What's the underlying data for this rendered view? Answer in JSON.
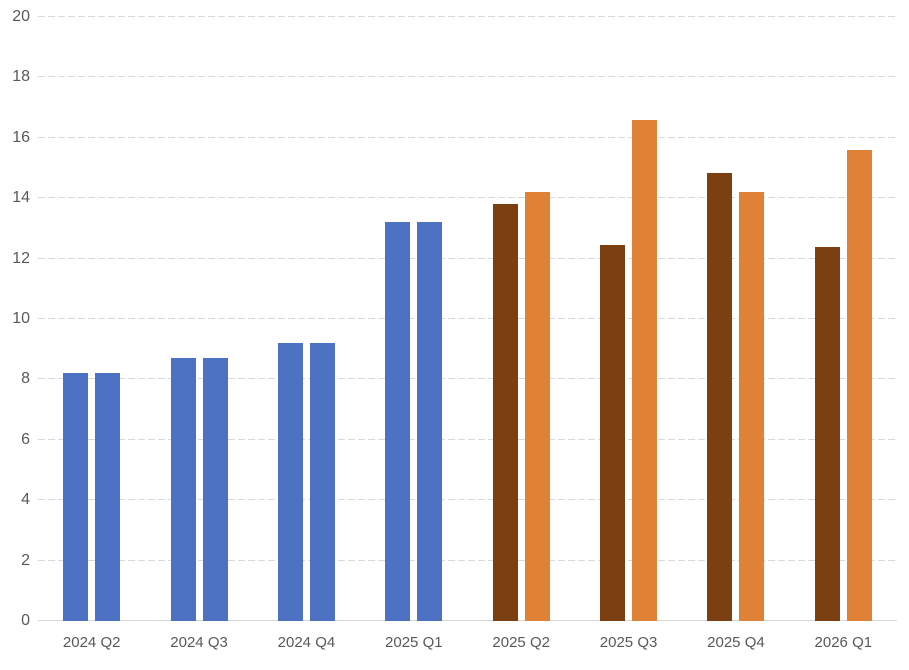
{
  "chart_data": {
    "type": "bar",
    "title": "",
    "xlabel": "",
    "ylabel": "",
    "legend": "none",
    "grid": "dashed-horizontal",
    "ylim": [
      0,
      20
    ],
    "ytick_step": 2,
    "yticks": [
      0,
      2,
      4,
      6,
      8,
      10,
      12,
      14,
      16,
      18,
      20
    ],
    "categories": [
      "2024 Q2",
      "2024 Q3",
      "2024 Q4",
      "2025 Q1",
      "2025 Q2",
      "2025 Q3",
      "2025 Q4",
      "2026 Q1"
    ],
    "series": [
      {
        "name": "left-bar-series",
        "values": [
          8.2,
          8.7,
          9.2,
          13.2,
          13.8,
          12.45,
          14.85,
          12.4
        ],
        "colors": [
          "#4D72C3",
          "#4D72C3",
          "#4D72C3",
          "#4D72C3",
          "#7B3F12",
          "#7B3F12",
          "#7B3F12",
          "#7B3F12"
        ]
      },
      {
        "name": "right-bar-series",
        "values": [
          8.2,
          8.7,
          9.2,
          13.2,
          14.2,
          16.6,
          14.2,
          15.6
        ],
        "colors": [
          "#4D72C3",
          "#4D72C3",
          "#4D72C3",
          "#4D72C3",
          "#E08138",
          "#E08138",
          "#E08138",
          "#E08138"
        ]
      }
    ]
  },
  "colors": {
    "blue": "#4D72C3",
    "brown": "#7B3F12",
    "orange": "#E08138",
    "gridline": "#D9D9D9",
    "axis_line": "#D6D6D6",
    "tick_label": "#595959",
    "background": "#FFFFFF"
  }
}
